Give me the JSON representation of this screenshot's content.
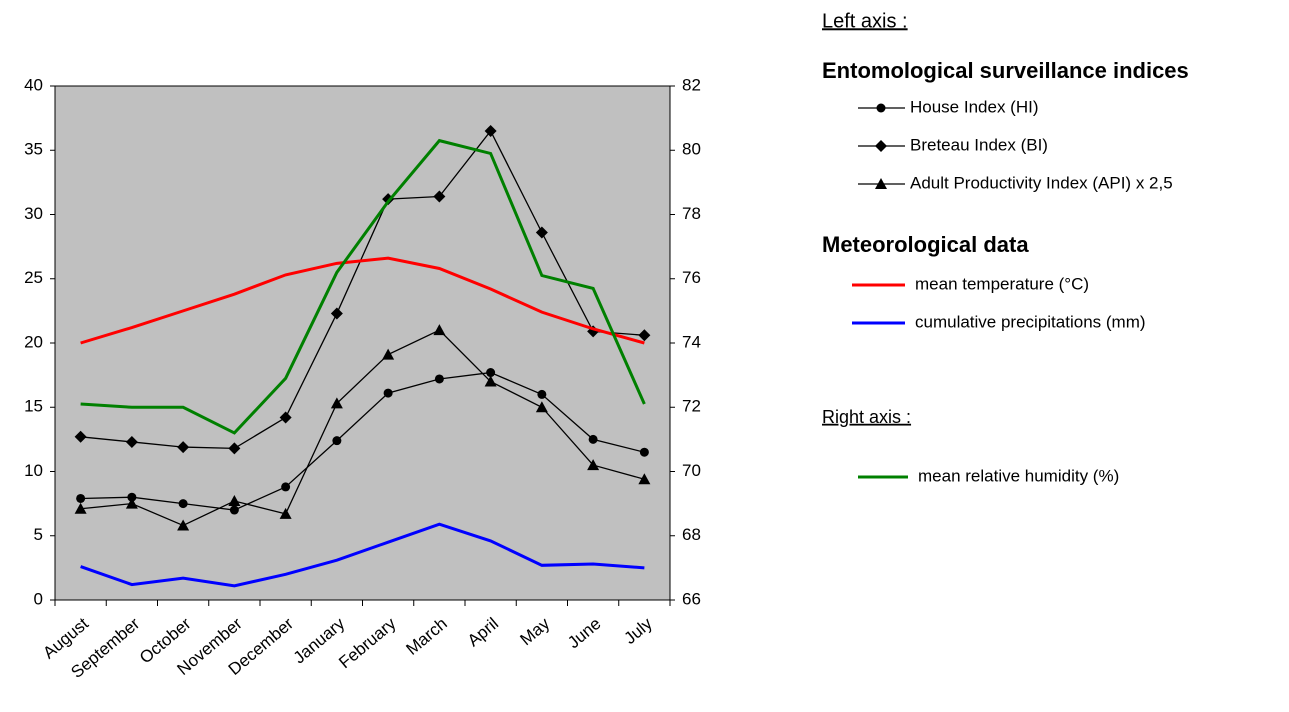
{
  "chart_data": {
    "type": "line",
    "categories": [
      "August",
      "September",
      "October",
      "November",
      "December",
      "January",
      "February",
      "March",
      "April",
      "May",
      "June",
      "July"
    ],
    "ylim": [
      0,
      40
    ],
    "yticks": [
      0,
      5,
      10,
      15,
      20,
      25,
      30,
      35,
      40
    ],
    "y2lim": [
      66,
      82
    ],
    "y2ticks": [
      66,
      68,
      70,
      72,
      74,
      76,
      78,
      80,
      82
    ],
    "grid": false,
    "plot_background": "#c0c0c0",
    "legend_headings": {
      "left": "Left axis :",
      "entomological": "Entomological surveillance indices",
      "meteorological": "Meteorological data",
      "right": "Right axis :"
    },
    "series": [
      {
        "name": "House Index (HI)",
        "color": "#000000",
        "marker": "circle",
        "values": [
          7.9,
          8.0,
          7.5,
          7.0,
          8.8,
          12.4,
          16.1,
          17.2,
          17.7,
          16.0,
          12.5,
          11.5
        ]
      },
      {
        "name": "Breteau Index (BI)",
        "color": "#000000",
        "marker": "diamond",
        "values": [
          12.7,
          12.3,
          11.9,
          11.8,
          14.2,
          22.3,
          31.2,
          31.4,
          36.5,
          28.6,
          20.9,
          20.6
        ]
      },
      {
        "name": "Adult Productivity Index (API) x 2,5",
        "color": "#000000",
        "marker": "triangle",
        "values": [
          7.1,
          7.5,
          5.8,
          7.7,
          6.7,
          15.3,
          19.1,
          21.0,
          17.0,
          15.0,
          10.5,
          9.4
        ]
      },
      {
        "name": "mean temperature (°C)",
        "color": "#ff0000",
        "values": [
          20.0,
          21.2,
          22.5,
          23.8,
          25.3,
          26.2,
          26.6,
          25.8,
          24.2,
          22.4,
          21.1,
          20.0
        ]
      },
      {
        "name": "cumulative precipitations (mm)",
        "color": "#0000ff",
        "values": [
          2.6,
          1.2,
          1.7,
          1.1,
          2.0,
          3.1,
          4.5,
          5.9,
          4.6,
          2.7,
          2.8,
          2.5
        ]
      },
      {
        "name": "mean relative humidity (%)",
        "color": "#008000",
        "axis": "y2",
        "values": [
          72.1,
          72.0,
          72.0,
          71.2,
          72.9,
          76.2,
          78.4,
          80.3,
          79.9,
          76.1,
          75.7,
          72.1
        ]
      }
    ]
  }
}
